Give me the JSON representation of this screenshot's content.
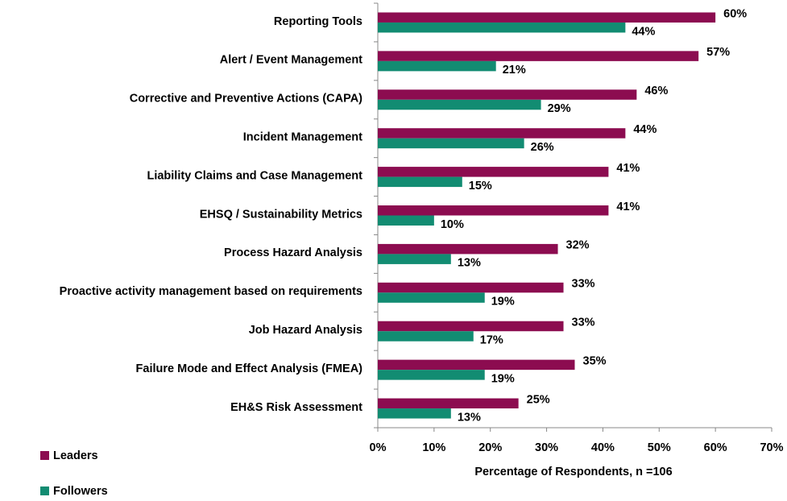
{
  "chart_data": {
    "type": "barh",
    "x_label": "Percentage of Respondents, n =106",
    "categories": [
      "Reporting Tools",
      "Alert / Event Management",
      "Corrective and Preventive Actions (CAPA)",
      "Incident Management",
      "Liability Claims and Case Management",
      "EHSQ / Sustainability Metrics",
      "Process Hazard Analysis",
      "Proactive activity management based on requirements",
      "Job Hazard Analysis",
      "Failure Mode and Effect Analysis (FMEA)",
      "EH&S Risk Assessment"
    ],
    "series": [
      {
        "name": "Leaders",
        "color": "#8c0c50",
        "values": [
          60,
          57,
          46,
          44,
          41,
          41,
          32,
          33,
          33,
          35,
          25
        ],
        "value_labels": [
          "60%",
          "57%",
          "46%",
          "44%",
          "41%",
          "41%",
          "32%",
          "33%",
          "33%",
          "35%",
          "25%"
        ]
      },
      {
        "name": "Followers",
        "color": "#128c72",
        "values": [
          44,
          21,
          29,
          26,
          15,
          10,
          13,
          19,
          17,
          19,
          13
        ],
        "value_labels": [
          "44%",
          "21%",
          "29%",
          "26%",
          "15%",
          "10%",
          "13%",
          "19%",
          "17%",
          "19%",
          "13%"
        ]
      }
    ],
    "xlim": [
      0,
      70
    ],
    "xticks": [
      {
        "value": 0,
        "label": "0%"
      },
      {
        "value": 10,
        "label": "10%"
      },
      {
        "value": 20,
        "label": "20%"
      },
      {
        "value": 30,
        "label": "30%"
      },
      {
        "value": 40,
        "label": "40%"
      },
      {
        "value": 50,
        "label": "50%"
      },
      {
        "value": 60,
        "label": "60%"
      },
      {
        "value": 70,
        "label": "70%"
      }
    ],
    "grid": false,
    "legend": "bottom-left"
  }
}
